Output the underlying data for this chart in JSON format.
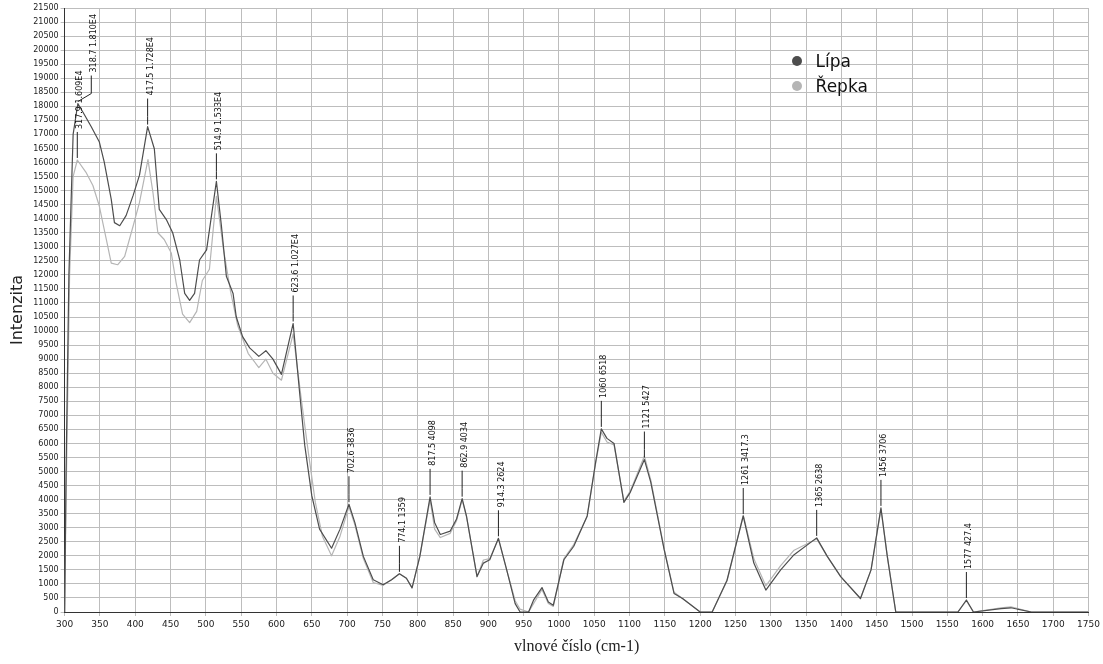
{
  "chart_data": {
    "type": "line",
    "xlabel": "vlnové číslo (cm-1)",
    "ylabel": "Intenzita",
    "legend": "top right",
    "grid": true,
    "marker": "none",
    "line_style": "solid",
    "xlim": [
      300,
      1750
    ],
    "xticks": [
      300,
      350,
      400,
      450,
      500,
      550,
      600,
      650,
      700,
      750,
      800,
      850,
      900,
      950,
      1000,
      1050,
      1100,
      1150,
      1200,
      1250,
      1300,
      1350,
      1400,
      1450,
      1500,
      1550,
      1600,
      1650,
      1700,
      1750
    ],
    "ylim": [
      0,
      21500
    ],
    "yticks": [
      0,
      500,
      1000,
      1500,
      2000,
      2500,
      3000,
      3500,
      4000,
      4500,
      5000,
      5500,
      6000,
      6500,
      7000,
      7500,
      8000,
      8500,
      9000,
      9500,
      10000,
      10500,
      11000,
      11500,
      12000,
      12500,
      13000,
      13500,
      14000,
      14500,
      15000,
      15500,
      16000,
      16500,
      17000,
      17500,
      18000,
      18500,
      19000,
      19500,
      20000,
      20500,
      21000,
      21500
    ],
    "series": [
      {
        "name": "Lípa",
        "color": "#4d4d4d",
        "x": [
          300,
          302,
          306,
          312,
          318.7,
          328,
          337.5,
          349,
          356,
          366,
          370.5,
          378,
          387,
          397,
          406,
          417.5,
          427,
          434,
          444,
          453,
          463,
          470,
          477,
          484,
          491,
          501,
          514.9,
          522,
          529,
          538.5,
          543,
          552,
          562,
          575,
          585,
          595,
          607,
          623.6,
          633,
          640,
          650,
          661,
          678,
          690,
          702.6,
          711,
          723,
          737,
          751,
          763,
          774.1,
          784,
          792,
          803,
          817.5,
          824,
          832,
          846,
          855,
          862.9,
          869,
          884,
          893,
          902,
          914.3,
          926,
          938,
          945,
          957,
          964,
          976,
          985,
          992,
          1007,
          1021,
          1040,
          1052,
          1060,
          1068,
          1078,
          1092,
          1101,
          1121,
          1130,
          1149,
          1163,
          1175,
          1200,
          1217,
          1238,
          1261,
          1276,
          1293,
          1314,
          1333,
          1365,
          1380,
          1399,
          1427,
          1442,
          1456,
          1465,
          1477,
          1565,
          1577,
          1587,
          1626,
          1640,
          1669,
          1750
        ],
        "values": [
          0,
          5000,
          12000,
          17000,
          18100,
          17700,
          17280,
          16740,
          16020,
          14690,
          13860,
          13750,
          14110,
          14830,
          15550,
          17280,
          16490,
          14330,
          13970,
          13500,
          12530,
          11340,
          11090,
          11340,
          12530,
          12890,
          15330,
          13750,
          11950,
          11340,
          10510,
          9800,
          9400,
          9100,
          9300,
          9000,
          8460,
          10270,
          7740,
          5940,
          4140,
          2950,
          2270,
          2950,
          3836,
          3180,
          1980,
          1150,
          970,
          1150,
          1359,
          1200,
          860,
          1980,
          4098,
          3180,
          2760,
          2880,
          3310,
          4034,
          3420,
          1260,
          1740,
          1860,
          2624,
          1500,
          300,
          0,
          0,
          420,
          870,
          360,
          240,
          1860,
          2340,
          3420,
          5340,
          6518,
          6180,
          6000,
          3900,
          4260,
          5427,
          4620,
          2220,
          660,
          480,
          0,
          0,
          1130,
          3417,
          1740,
          780,
          1500,
          2040,
          2638,
          1980,
          1260,
          480,
          1500,
          3706,
          1980,
          0,
          0,
          427,
          0,
          120,
          150,
          0,
          0
        ]
      },
      {
        "name": "Řepka",
        "color": "#b5b5b5",
        "x": [
          300,
          302,
          307,
          312,
          317.9,
          330,
          340,
          349,
          359,
          366,
          375,
          385,
          397,
          406,
          418,
          425,
          432,
          441,
          451,
          458,
          467,
          477,
          487,
          495,
          505,
          514.9,
          525,
          535,
          545,
          560,
          575,
          585,
          595,
          607,
          623.6,
          635,
          645,
          655,
          665,
          678,
          690,
          702.6,
          711,
          723,
          737,
          751,
          763,
          774.1,
          784,
          792,
          803,
          817.5,
          824,
          832,
          846,
          855,
          862.9,
          869,
          884,
          893,
          902,
          914.3,
          926,
          938,
          945,
          957,
          964,
          976,
          985,
          992,
          1007,
          1021,
          1040,
          1052,
          1060,
          1068,
          1078,
          1092,
          1101,
          1121,
          1130,
          1149,
          1163,
          1175,
          1200,
          1217,
          1238,
          1261,
          1276,
          1293,
          1314,
          1333,
          1365,
          1380,
          1399,
          1427,
          1442,
          1456,
          1465,
          1477,
          1565,
          1577,
          1587,
          1626,
          1640,
          1669,
          1750
        ],
        "values": [
          0,
          4000,
          12000,
          15500,
          16090,
          15660,
          15180,
          14460,
          13260,
          12420,
          12360,
          12660,
          13740,
          14580,
          16100,
          14940,
          13500,
          13260,
          12780,
          11700,
          10600,
          10300,
          10700,
          11800,
          12200,
          14800,
          12900,
          11400,
          10200,
          9200,
          8700,
          9000,
          8500,
          8250,
          9900,
          7600,
          5700,
          3900,
          2700,
          2000,
          2700,
          3750,
          3100,
          1900,
          1050,
          950,
          1150,
          1359,
          1200,
          860,
          1980,
          4000,
          2950,
          2650,
          2800,
          3250,
          4000,
          3400,
          1260,
          1850,
          1900,
          2600,
          1500,
          400,
          100,
          0,
          300,
          800,
          300,
          200,
          1900,
          2400,
          3400,
          5300,
          6400,
          6050,
          5950,
          3950,
          4300,
          5550,
          4700,
          2250,
          700,
          480,
          0,
          0,
          1100,
          3450,
          1900,
          930,
          1650,
          2200,
          2600,
          1980,
          1260,
          480,
          1500,
          3650,
          1980,
          0,
          0,
          400,
          0,
          150,
          180,
          0,
          0
        ]
      }
    ],
    "annotations": [
      {
        "text": "317.9 1.609E4",
        "x": 317.9,
        "y": 16090
      },
      {
        "text": "318.7 1.810E4",
        "x": 318.7,
        "y": 18100
      },
      {
        "text": "417.5 1.728E4",
        "x": 417.5,
        "y": 17280
      },
      {
        "text": "514.9 1.533E4",
        "x": 514.9,
        "y": 15330
      },
      {
        "text": "623.6 1.027E4",
        "x": 623.6,
        "y": 10270
      },
      {
        "text": "702.6 3836",
        "x": 702.6,
        "y": 3836
      },
      {
        "text": "774.1 1359",
        "x": 774.1,
        "y": 1359
      },
      {
        "text": "817.5 4098",
        "x": 817.5,
        "y": 4098
      },
      {
        "text": "862.9 4034",
        "x": 862.9,
        "y": 4034
      },
      {
        "text": "914.3 2624",
        "x": 914.3,
        "y": 2624
      },
      {
        "text": "1060 6518",
        "x": 1060,
        "y": 6518
      },
      {
        "text": "1121 5427",
        "x": 1121,
        "y": 5427
      },
      {
        "text": "1261 3417.3",
        "x": 1261,
        "y": 3417.3
      },
      {
        "text": "1365 2638",
        "x": 1365,
        "y": 2638
      },
      {
        "text": "1456 3706",
        "x": 1456,
        "y": 3706
      },
      {
        "text": "1577 427.4",
        "x": 1577,
        "y": 427.4
      }
    ]
  }
}
